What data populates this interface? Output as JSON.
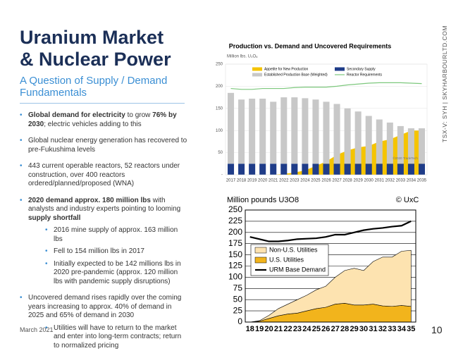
{
  "header": {
    "title": [
      "Uranium Market",
      "& Nuclear Power"
    ],
    "subtitle": "A Question of Supply / Demand Fundamentals"
  },
  "bullets": [
    {
      "runs": [
        {
          "text": "Global demand for electricity",
          "bold": true
        },
        {
          "text": " to grow "
        },
        {
          "text": "76% by 2030",
          "bold": true
        },
        {
          "text": "; electric vehicles adding to this"
        }
      ]
    },
    {
      "runs": [
        {
          "text": "Global nuclear energy generation has recovered to pre-Fukushima levels"
        }
      ]
    },
    {
      "runs": [
        {
          "text": "443 current operable reactors, 52 reactors under construction, over 400 reactors ordered/planned/proposed (WNA)"
        }
      ]
    },
    {
      "runs": [
        {
          "text": "2020 demand approx. 180 million lbs",
          "bold": true
        },
        {
          "text": " with analysts and industry experts pointing to looming "
        },
        {
          "text": "supply shortfall",
          "bold": true
        }
      ],
      "sub": [
        "2016 mine supply of approx. 163 million lbs",
        "Fell to 154 million lbs in 2017",
        "Initially expected to be 142 millions lbs in 2020 pre-pandemic (approx. 120 million lbs with pandemic supply disruptions)"
      ]
    },
    {
      "runs": [
        {
          "text": "Uncovered demand rises rapidly over the coming years increasing to approx. 40% of demand in 2025 and 65% of demand in 2030"
        }
      ],
      "sub": [
        "Utilities will have to return to the market and enter into long-term contracts; return to normalized pricing"
      ]
    }
  ],
  "footer": {
    "date": "March 2021",
    "page": "10",
    "side": "TSX-V: SYH  |  SKYHARBOURLTD.COM"
  },
  "chart_data": [
    {
      "type": "bar",
      "title": "Production vs. Demand and Uncovered Requirements",
      "y_label": "Million lbs. U₃O₈",
      "watermark": "©2020 TradeTech",
      "categories": [
        "2017",
        "2018",
        "2019",
        "2020",
        "2021",
        "2022",
        "2023",
        "2024",
        "2025",
        "2026",
        "2027",
        "2028",
        "2029",
        "2030",
        "2031",
        "2032",
        "2033",
        "2034",
        "2035"
      ],
      "ylim": [
        0,
        250
      ],
      "yticks": [
        {
          "value": 0,
          "label": "-"
        },
        50,
        100,
        150,
        200,
        250
      ],
      "grid": true,
      "series": [
        {
          "name": "Appetite for New Production",
          "type": "area",
          "color": "#f5c400",
          "values": [
            0,
            0,
            0,
            0,
            0,
            2,
            5,
            10,
            20,
            30,
            45,
            55,
            62,
            65,
            75,
            80,
            90,
            100,
            100
          ]
        },
        {
          "name": "Secondary Supply",
          "type": "bar",
          "color": "#1f3c88",
          "values": [
            25,
            25,
            25,
            25,
            25,
            25,
            25,
            25,
            25,
            25,
            25,
            25,
            25,
            25,
            25,
            25,
            25,
            25,
            25
          ]
        },
        {
          "name": "Established Production Base (Weighted)",
          "type": "bar",
          "color": "#c8c8c8",
          "values": [
            160,
            145,
            147,
            147,
            140,
            150,
            150,
            148,
            145,
            140,
            135,
            125,
            118,
            108,
            100,
            93,
            85,
            80,
            80
          ]
        },
        {
          "name": "Reactor Requirements",
          "type": "line",
          "color": "#7dc87d",
          "values": [
            195,
            193,
            193,
            195,
            195,
            195,
            197,
            198,
            198,
            198,
            200,
            203,
            205,
            207,
            208,
            208,
            208,
            207,
            206
          ]
        }
      ]
    },
    {
      "type": "area",
      "title": "Million pounds U3O8",
      "watermark": "© UxC",
      "categories": [
        "18",
        "19",
        "20",
        "21",
        "22",
        "23",
        "24",
        "25",
        "26",
        "27",
        "28",
        "29",
        "30",
        "31",
        "32",
        "33",
        "34",
        "35"
      ],
      "ylim": [
        0,
        250
      ],
      "yticks": [
        0,
        25,
        50,
        75,
        100,
        125,
        150,
        175,
        200,
        225,
        250
      ],
      "grid": true,
      "series": [
        {
          "name": "Non-U.S. Utilities",
          "type": "area",
          "color": "#fde3b0",
          "values": [
            0,
            1,
            7,
            16,
            22,
            30,
            35,
            42,
            47,
            60,
            73,
            82,
            77,
            95,
            109,
            110,
            121,
            125
          ]
        },
        {
          "name": "U.S. Utilities",
          "type": "area",
          "color": "#f2b41c",
          "values": [
            0,
            2,
            8,
            14,
            18,
            20,
            25,
            30,
            33,
            40,
            42,
            38,
            38,
            40,
            36,
            35,
            37,
            35
          ]
        },
        {
          "name": "URM Base Demand",
          "type": "line",
          "color": "#000000",
          "values": [
            190,
            185,
            180,
            180,
            182,
            185,
            186,
            187,
            190,
            195,
            195,
            200,
            205,
            208,
            210,
            213,
            215,
            225
          ]
        }
      ]
    }
  ]
}
